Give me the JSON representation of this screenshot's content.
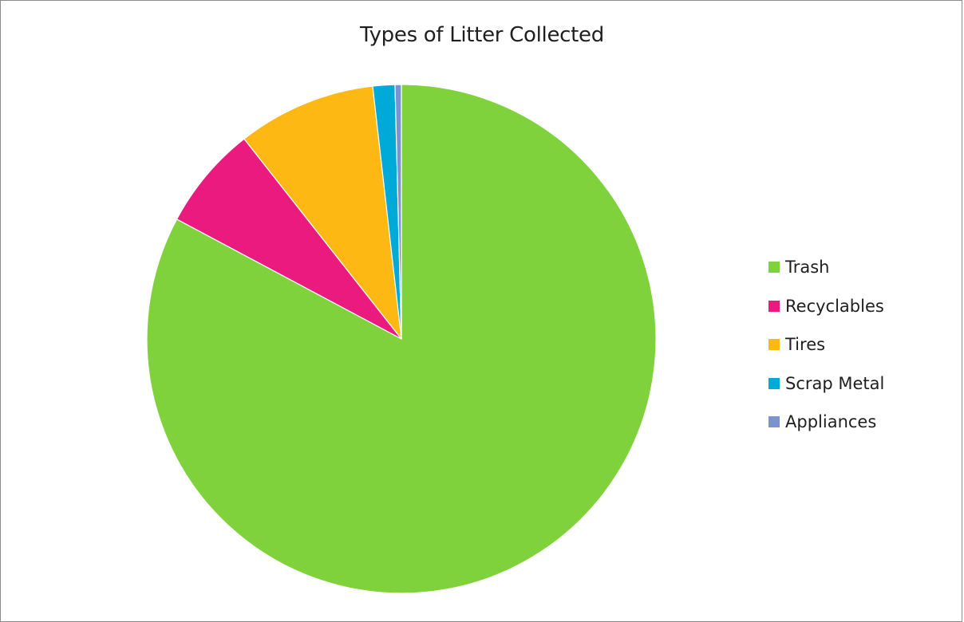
{
  "chart_data": {
    "type": "pie",
    "title": "Types of Litter Collected",
    "categories": [
      "Trash",
      "Recyclables",
      "Tires",
      "Scrap Metal",
      "Appliances"
    ],
    "values": [
      82.8,
      6.6,
      8.8,
      1.4,
      0.4
    ],
    "colors": [
      "#80d23c",
      "#ea1a7f",
      "#feb813",
      "#00aad8",
      "#7b93cf"
    ],
    "legend_position": "right",
    "start_angle_deg": 0,
    "direction": "clockwise"
  }
}
